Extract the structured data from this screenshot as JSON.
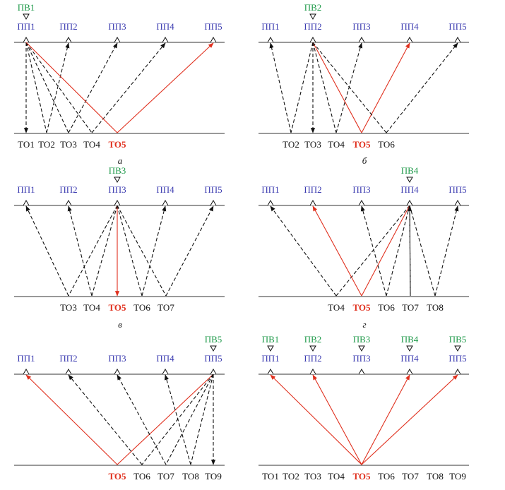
{
  "colors": {
    "receiver_label": "#3b3bb0",
    "source_label": "#1f9a4a",
    "highlight": "#e0301e",
    "dashed": "#111111",
    "baseline": "#333333"
  },
  "panels": [
    {
      "caption": "а",
      "receivers": [
        "ПП1",
        "ПП2",
        "ПП3",
        "ПП4",
        "ПП5"
      ],
      "sources": [
        {
          "label": "ПВ1",
          "at": 0
        }
      ],
      "points": [
        {
          "label": "ТО1",
          "slot": 0
        },
        {
          "label": "ТО2",
          "slot": 1
        },
        {
          "label": "ТО3",
          "slot": 2
        },
        {
          "label": "ТО4",
          "slot": 3
        },
        {
          "label": "ТО5",
          "slot": 4,
          "highlight": true
        }
      ],
      "rays": [
        {
          "src": 0,
          "pt": 0,
          "rcv": 0
        },
        {
          "src": 0,
          "pt": 1,
          "rcv": 1
        },
        {
          "src": 0,
          "pt": 2,
          "rcv": 2
        },
        {
          "src": 0,
          "pt": 3,
          "rcv": 3
        },
        {
          "src": 0,
          "pt": 4,
          "rcv": 4,
          "highlight": true
        }
      ]
    },
    {
      "caption": "б",
      "receivers": [
        "ПП1",
        "ПП2",
        "ПП3",
        "ПП4",
        "ПП5"
      ],
      "sources": [
        {
          "label": "ПВ2",
          "at": 1
        }
      ],
      "points": [
        {
          "label": "ТО2",
          "slot": 1
        },
        {
          "label": "ТО3",
          "slot": 2
        },
        {
          "label": "ТО4",
          "slot": 3
        },
        {
          "label": "ТО5",
          "slot": 4,
          "highlight": true
        },
        {
          "label": "ТО6",
          "slot": 5
        }
      ],
      "rays": [
        {
          "src": 1,
          "pt": 1,
          "rcv": 0
        },
        {
          "src": 1,
          "pt": 2,
          "rcv": 1
        },
        {
          "src": 1,
          "pt": 3,
          "rcv": 2
        },
        {
          "src": 1,
          "pt": 4,
          "rcv": 3,
          "highlight": true
        },
        {
          "src": 1,
          "pt": 5,
          "rcv": 4
        }
      ]
    },
    {
      "caption": "в",
      "receivers": [
        "ПП1",
        "ПП2",
        "ПП3",
        "ПП4",
        "ПП5"
      ],
      "sources": [
        {
          "label": "ПВ3",
          "at": 2
        }
      ],
      "points": [
        {
          "label": "ТО3",
          "slot": 2
        },
        {
          "label": "ТО4",
          "slot": 3
        },
        {
          "label": "ТО5",
          "slot": 4,
          "highlight": true
        },
        {
          "label": "ТО6",
          "slot": 5
        },
        {
          "label": "ТО7",
          "slot": 6
        }
      ],
      "rays": [
        {
          "src": 2,
          "pt": 2,
          "rcv": 0
        },
        {
          "src": 2,
          "pt": 3,
          "rcv": 1
        },
        {
          "src": 2,
          "pt": 4,
          "rcv": 2,
          "highlight": true
        },
        {
          "src": 2,
          "pt": 5,
          "rcv": 3
        },
        {
          "src": 2,
          "pt": 6,
          "rcv": 4
        }
      ]
    },
    {
      "caption": "г",
      "receivers": [
        "ПП1",
        "ПП2",
        "ПП3",
        "ПП4",
        "ПП5"
      ],
      "sources": [
        {
          "label": "ПВ4",
          "at": 3
        }
      ],
      "points": [
        {
          "label": "ТО4",
          "slot": 3
        },
        {
          "label": "ТО5",
          "slot": 4,
          "highlight": true
        },
        {
          "label": "ТО6",
          "slot": 5
        },
        {
          "label": "ТО7",
          "slot": 6
        },
        {
          "label": "ТО8",
          "slot": 7
        }
      ],
      "rays": [
        {
          "src": 3,
          "pt": 3,
          "rcv": 0
        },
        {
          "src": 3,
          "pt": 4,
          "rcv": 1,
          "highlight": true
        },
        {
          "src": 3,
          "pt": 5,
          "rcv": 2
        },
        {
          "src": 3,
          "pt": 6,
          "rcv": 3
        },
        {
          "src": 3,
          "pt": 7,
          "rcv": 4
        }
      ]
    },
    {
      "caption": "",
      "receivers": [
        "ПП1",
        "ПП2",
        "ПП3",
        "ПП4",
        "ПП5"
      ],
      "sources": [
        {
          "label": "ПВ5",
          "at": 4
        }
      ],
      "points": [
        {
          "label": "ТО5",
          "slot": 4,
          "highlight": true
        },
        {
          "label": "ТО6",
          "slot": 5
        },
        {
          "label": "ТО7",
          "slot": 6
        },
        {
          "label": "ТО8",
          "slot": 7
        },
        {
          "label": "ТО9",
          "slot": 8
        }
      ],
      "rays": [
        {
          "src": 4,
          "pt": 4,
          "rcv": 0,
          "highlight": true
        },
        {
          "src": 4,
          "pt": 5,
          "rcv": 1
        },
        {
          "src": 4,
          "pt": 6,
          "rcv": 2
        },
        {
          "src": 4,
          "pt": 7,
          "rcv": 3
        },
        {
          "src": 4,
          "pt": 8,
          "rcv": 4
        }
      ]
    },
    {
      "caption": "",
      "receivers": [
        "ПП1",
        "ПП2",
        "ПП3",
        "ПП4",
        "ПП5"
      ],
      "sources": [
        {
          "label": "ПВ1",
          "at": 0
        },
        {
          "label": "ПВ2",
          "at": 1
        },
        {
          "label": "ПВ3",
          "at": 2
        },
        {
          "label": "ПВ4",
          "at": 3
        },
        {
          "label": "ПВ5",
          "at": 4
        }
      ],
      "points": [
        {
          "label": "ТО1",
          "slot": 0
        },
        {
          "label": "ТО2",
          "slot": 1
        },
        {
          "label": "ТО3",
          "slot": 2
        },
        {
          "label": "ТО4",
          "slot": 3
        },
        {
          "label": "ТО5",
          "slot": 4,
          "highlight": true
        },
        {
          "label": "ТО6",
          "slot": 5
        },
        {
          "label": "ТО7",
          "slot": 6
        },
        {
          "label": "ТО8",
          "slot": 7
        },
        {
          "label": "ТО9",
          "slot": 8
        }
      ],
      "rays": [
        {
          "src": 0,
          "pt": 4,
          "rcv": 0,
          "highlight": true,
          "one_way": true
        },
        {
          "src": 1,
          "pt": 4,
          "rcv": 1,
          "highlight": true,
          "one_way": true
        },
        {
          "src": 2,
          "pt": 4,
          "rcv": 2,
          "highlight": true,
          "one_way": true
        },
        {
          "src": 3,
          "pt": 4,
          "rcv": 3,
          "highlight": true,
          "one_way": true
        },
        {
          "src": 4,
          "pt": 4,
          "rcv": 4,
          "highlight": true,
          "one_way": true
        }
      ]
    }
  ]
}
